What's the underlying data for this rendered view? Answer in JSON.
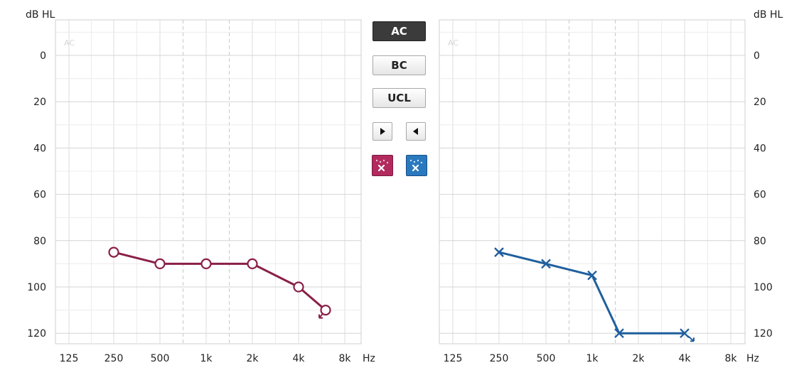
{
  "units": {
    "y_unit": "dB HL",
    "x_unit": "Hz"
  },
  "buttons": {
    "ac": "AC",
    "bc": "BC",
    "ucl": "UCL"
  },
  "icons": {
    "next": "play-right-icon",
    "prev": "play-left-icon",
    "masking_left": "masking-right-ear-icon",
    "masking_right": "masking-left-ear-icon"
  },
  "colors": {
    "right_ear": "#8a1f47",
    "left_ear": "#1f5f9e",
    "active_button": "#3b3b3b",
    "grid": "#dcdcdc"
  },
  "chart_data": [
    {
      "type": "line",
      "panel_label": "AC",
      "xlabel": "Hz",
      "ylabel": "dB HL",
      "x_ticks": [
        "125",
        "250",
        "500",
        "1k",
        "2k",
        "4k",
        "8k"
      ],
      "y_ticks": [
        0,
        20,
        40,
        60,
        80,
        100,
        120
      ],
      "y_range": [
        -10,
        125
      ],
      "y_inverted": true,
      "x_scale": "log",
      "series": [
        {
          "marker": "circle",
          "points": [
            {
              "x": 250,
              "y": 85
            },
            {
              "x": 500,
              "y": 90
            },
            {
              "x": 1000,
              "y": 90
            },
            {
              "x": 2000,
              "y": 90
            },
            {
              "x": 4000,
              "y": 100
            },
            {
              "x": 6000,
              "y": 110,
              "no_response": true
            }
          ]
        }
      ]
    },
    {
      "type": "line",
      "panel_label": "AC",
      "xlabel": "Hz",
      "ylabel": "dB HL",
      "x_ticks": [
        "125",
        "250",
        "500",
        "1k",
        "2k",
        "4k",
        "8k"
      ],
      "y_ticks": [
        0,
        20,
        40,
        60,
        80,
        100,
        120
      ],
      "y_range": [
        -10,
        125
      ],
      "y_inverted": true,
      "x_scale": "log",
      "series": [
        {
          "marker": "cross",
          "points": [
            {
              "x": 250,
              "y": 85
            },
            {
              "x": 500,
              "y": 90
            },
            {
              "x": 1000,
              "y": 95
            },
            {
              "x": 1500,
              "y": 120
            },
            {
              "x": 4000,
              "y": 120,
              "no_response": true
            }
          ]
        }
      ]
    }
  ]
}
